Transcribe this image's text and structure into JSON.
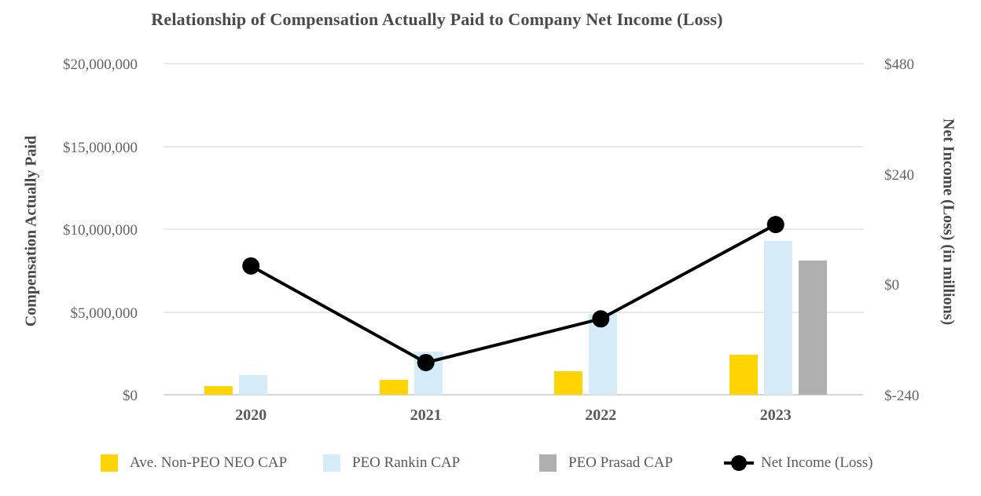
{
  "chart_data": {
    "type": "combo-bar-line",
    "title": "Relationship of Compensation Actually Paid to Company Net Income (Loss)",
    "categories": [
      "2020",
      "2021",
      "2022",
      "2023"
    ],
    "bar_series": [
      {
        "name": "Ave. Non-PEO NEO CAP",
        "color": "#FFD400",
        "values": [
          500000,
          900000,
          1400000,
          2400000
        ]
      },
      {
        "name": "PEO Rankin CAP",
        "color": "#D6EBF8",
        "values": [
          1200000,
          2600000,
          4900000,
          9300000
        ]
      },
      {
        "name": "PEO Prasad CAP",
        "color": "#AFAFAF",
        "values": [
          null,
          null,
          null,
          8100000
        ]
      }
    ],
    "line_series": {
      "name": "Net Income (Loss)",
      "color": "#000000",
      "values": [
        40,
        -170,
        -75,
        130
      ]
    },
    "left_axis": {
      "title": "Compensation Actually Paid",
      "min": 0,
      "max": 20000000,
      "tick_step": 5000000,
      "tick_labels": [
        "$0",
        "$5,000,000",
        "$10,000,000",
        "$15,000,000",
        "$20,000,000"
      ]
    },
    "right_axis": {
      "title": "Net Income (Loss) (in millions)",
      "min": -240,
      "max": 480,
      "tick_step": 240,
      "tick_labels": [
        "$-240",
        "$0",
        "$240",
        "$480"
      ]
    },
    "grid": true,
    "legend_position": "bottom"
  },
  "styles": {
    "background": "#FFFFFF",
    "grid_color": "#E9E9E9",
    "zero_line_color": "#D6D6D6",
    "tick_label_color": "#636363",
    "axis_title_color": "#474747",
    "title_color": "#4A4A4A",
    "category_label_color": "#595959",
    "legend_label_color": "#595959"
  }
}
